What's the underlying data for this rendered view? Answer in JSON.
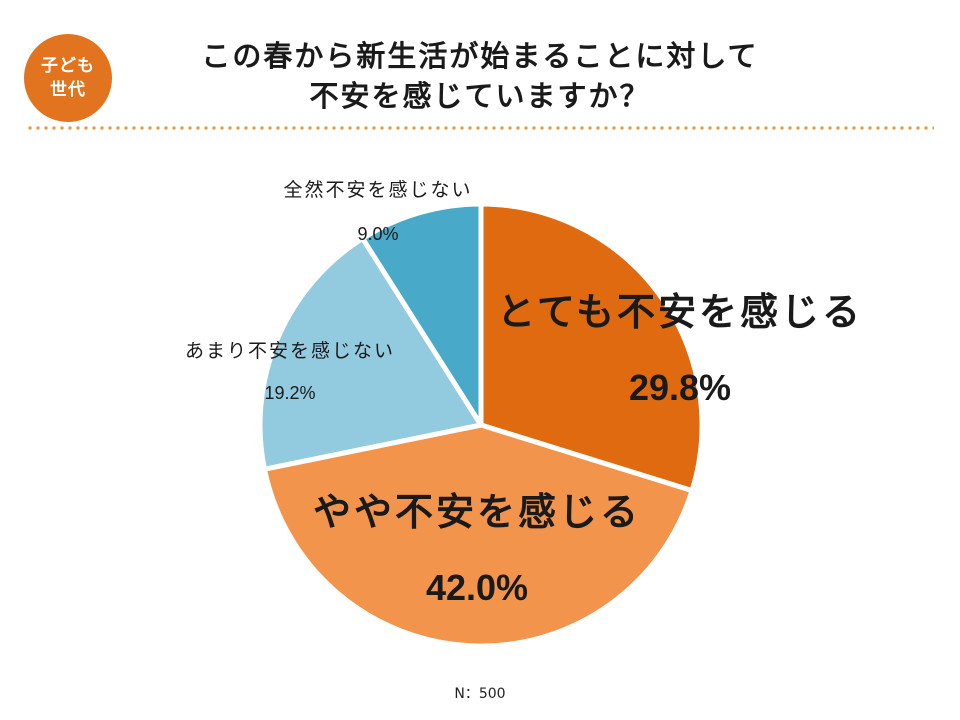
{
  "badge": {
    "line1": "子ども",
    "line2": "世代"
  },
  "title": {
    "line1": "この春から新生活が始まることに対して",
    "line2": "不安を感じていますか？"
  },
  "footnote": "N：500",
  "chart_data": {
    "type": "pie",
    "slices": [
      {
        "label": "とても不安を感じる",
        "value": 29.8,
        "value_label": "29.8%",
        "color": "#e06a10"
      },
      {
        "label": "やや不安を感じる",
        "value": 42.0,
        "value_label": "42.0%",
        "color": "#f3944d"
      },
      {
        "label": "あまり不安を感じない",
        "value": 19.2,
        "value_label": "19.2%",
        "color": "#92cbe0"
      },
      {
        "label": "全然不安を感じない",
        "value": 9.0,
        "value_label": "9.0%",
        "color": "#48a9c8"
      }
    ],
    "start": "12 o'clock",
    "direction": "clockwise"
  }
}
